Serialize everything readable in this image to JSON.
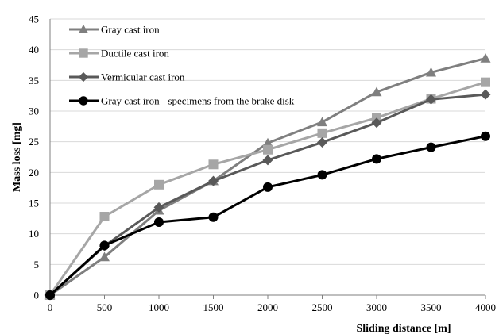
{
  "chart_data": {
    "type": "line",
    "xlabel": "Sliding distance [m]",
    "ylabel": "Mass loss [mg]",
    "xlim": [
      0,
      4000
    ],
    "ylim": [
      0,
      45
    ],
    "x_ticks": [
      0,
      500,
      1000,
      1500,
      2000,
      2500,
      3000,
      3500,
      4000
    ],
    "y_ticks": [
      0,
      5,
      10,
      15,
      20,
      25,
      30,
      35,
      40,
      45
    ],
    "grid": "horizontal",
    "legend_position": "top-left",
    "series": [
      {
        "name": "Gray cast iron",
        "marker": "triangle",
        "color": "#7f7f7f",
        "x": [
          0,
          500,
          1000,
          1500,
          2000,
          2500,
          3000,
          3500,
          4000
        ],
        "values": [
          0,
          6.2,
          13.8,
          18.6,
          24.8,
          28.2,
          33.1,
          36.3,
          38.6
        ]
      },
      {
        "name": "Ductile cast iron",
        "marker": "square",
        "color": "#a6a6a6",
        "x": [
          0,
          500,
          1000,
          1500,
          2000,
          2500,
          3000,
          3500,
          4000
        ],
        "values": [
          0,
          12.8,
          18.0,
          21.3,
          23.7,
          26.4,
          28.9,
          32.0,
          34.7
        ]
      },
      {
        "name": "Vermicular cast iron",
        "marker": "diamond",
        "color": "#595959",
        "x": [
          0,
          500,
          1000,
          1500,
          2000,
          2500,
          3000,
          3500,
          4000
        ],
        "values": [
          0,
          8.0,
          14.3,
          18.6,
          22.0,
          24.9,
          28.1,
          31.9,
          32.7
        ]
      },
      {
        "name": "Gray cast iron - specimens from the brake disk",
        "marker": "circle",
        "color": "#000000",
        "x": [
          0,
          500,
          1000,
          1500,
          2000,
          2500,
          3000,
          3500,
          4000
        ],
        "values": [
          0,
          8.1,
          11.9,
          12.7,
          17.6,
          19.6,
          22.2,
          24.1,
          25.9
        ]
      }
    ]
  }
}
